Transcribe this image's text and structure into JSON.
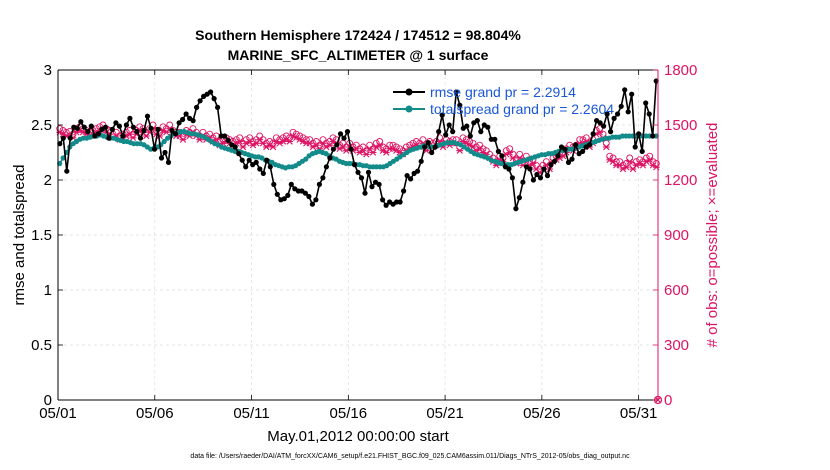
{
  "chart_data": {
    "type": "line",
    "title": "Southern Hemisphere 172424 / 174512 = 98.804%",
    "subtitle": "MARINE_SFC_ALTIMETER @ 1 surface",
    "xlabel": "May.01,2012 00:00:00 start",
    "ylabel_left": "rmse and totalspread",
    "ylabel_right": "# of obs: o=possible; ×=evaluated",
    "x_ticks": [
      "05/01",
      "05/06",
      "05/11",
      "05/16",
      "05/21",
      "05/26",
      "05/31"
    ],
    "xlim_days": [
      1,
      32
    ],
    "ylim_left": [
      0,
      3
    ],
    "y_ticks_left": [
      "0",
      "0.5",
      "1",
      "1.5",
      "2",
      "2.5",
      "3"
    ],
    "ylim_right": [
      0,
      1800
    ],
    "y_ticks_right": [
      "0",
      "300",
      "600",
      "900",
      "1200",
      "1500",
      "1800"
    ],
    "footnote": "data file: /Users/raeder/DAI/ATM_forcXX/CAM6_setup/f.e21.FHIST_BGC.f09_025.CAM6assim.011/Diags_NTrS_2012-05/obs_diag_output.nc",
    "colors": {
      "rmse": "#000000",
      "spread": "#138b8b",
      "obs": "#dc1464",
      "rightaxis": "#dc1464"
    },
    "series": [
      {
        "name": "rmse grand pr = 2.2914",
        "axis": "left",
        "marker": "dot",
        "values": [
          2.33,
          2.38,
          2.08,
          2.38,
          2.48,
          2.47,
          2.53,
          2.48,
          2.44,
          2.49,
          2.4,
          2.42,
          2.46,
          2.48,
          2.38,
          2.46,
          2.52,
          2.49,
          2.4,
          2.5,
          2.56,
          2.48,
          2.44,
          2.38,
          2.45,
          2.58,
          2.47,
          2.28,
          2.46,
          2.2,
          2.25,
          2.16,
          2.45,
          2.42,
          2.52,
          2.55,
          2.6,
          2.56,
          2.54,
          2.66,
          2.72,
          2.76,
          2.78,
          2.8,
          2.74,
          2.66,
          2.4,
          2.4,
          2.36,
          2.32,
          2.3,
          2.24,
          2.18,
          2.12,
          2.18,
          2.14,
          2.16,
          2.1,
          2.06,
          2.18,
          2.12,
          1.96,
          1.87,
          1.82,
          1.83,
          1.86,
          1.96,
          1.92,
          1.9,
          1.9,
          1.88,
          1.85,
          1.78,
          1.82,
          1.96,
          2.02,
          2.12,
          2.2,
          2.28,
          2.32,
          2.42,
          2.38,
          2.44,
          2.28,
          2.14,
          2.07,
          2.02,
          1.88,
          2.07,
          1.94,
          1.98,
          1.96,
          1.82,
          1.77,
          1.8,
          1.78,
          1.8,
          1.8,
          1.9,
          2.04,
          2.01,
          2.06,
          2.08,
          2.17,
          2.3,
          2.34,
          2.25,
          2.3,
          2.44,
          2.59,
          2.41,
          2.5,
          2.44,
          2.8,
          2.68,
          2.47,
          2.49,
          2.4,
          2.52,
          2.54,
          2.44,
          2.5,
          2.48,
          2.37,
          2.37,
          2.26,
          2.22,
          2.12,
          2.1,
          2.02,
          1.74,
          1.84,
          1.98,
          2.12,
          2.1,
          2.0,
          2.05,
          2.02,
          2.1,
          2.04,
          2.14,
          2.17,
          2.22,
          2.3,
          2.28,
          2.16,
          2.19,
          2.32,
          2.24,
          2.26,
          2.3,
          2.32,
          2.42,
          2.54,
          2.52,
          2.49,
          2.6,
          2.44,
          2.56,
          2.6,
          2.67,
          2.82,
          2.62,
          2.78,
          2.3,
          2.42,
          2.26,
          2.7,
          2.6,
          2.4,
          2.9
        ]
      },
      {
        "name": "totalspread grand pr = 2.2604",
        "axis": "left",
        "marker": "dot",
        "values": [
          2.15,
          2.2,
          2.25,
          2.3,
          2.33,
          2.35,
          2.37,
          2.38,
          2.38,
          2.39,
          2.4,
          2.4,
          2.41,
          2.4,
          2.39,
          2.38,
          2.38,
          2.37,
          2.36,
          2.35,
          2.35,
          2.34,
          2.33,
          2.33,
          2.33,
          2.32,
          2.3,
          2.28,
          2.29,
          2.3,
          2.32,
          2.35,
          2.38,
          2.4,
          2.42,
          2.43,
          2.44,
          2.44,
          2.43,
          2.42,
          2.42,
          2.41,
          2.4,
          2.39,
          2.37,
          2.35,
          2.33,
          2.32,
          2.3,
          2.29,
          2.28,
          2.27,
          2.26,
          2.26,
          2.25,
          2.24,
          2.23,
          2.22,
          2.21,
          2.21,
          2.2,
          2.18,
          2.17,
          2.16,
          2.14,
          2.13,
          2.12,
          2.11,
          2.12,
          2.12,
          2.13,
          2.15,
          2.17,
          2.19,
          2.22,
          2.24,
          2.25,
          2.26,
          2.25,
          2.24,
          2.22,
          2.2,
          2.19,
          2.17,
          2.16,
          2.15,
          2.15,
          2.15,
          2.14,
          2.14,
          2.13,
          2.13,
          2.12,
          2.12,
          2.12,
          2.12,
          2.12,
          2.13,
          2.15,
          2.17,
          2.19,
          2.21,
          2.23,
          2.25,
          2.27,
          2.28,
          2.29,
          2.3,
          2.31,
          2.31,
          2.3,
          2.3,
          2.31,
          2.32,
          2.33,
          2.34,
          2.34,
          2.34,
          2.33,
          2.32,
          2.3,
          2.28,
          2.26,
          2.24,
          2.23,
          2.22,
          2.21,
          2.2,
          2.18,
          2.17,
          2.16,
          2.15,
          2.14,
          2.14,
          2.14,
          2.15,
          2.16,
          2.17,
          2.18,
          2.19,
          2.2,
          2.21,
          2.22,
          2.23,
          2.23,
          2.24,
          2.24,
          2.25,
          2.26,
          2.27,
          2.27,
          2.28,
          2.28,
          2.29,
          2.3,
          2.31,
          2.32,
          2.33,
          2.34,
          2.35,
          2.36,
          2.37,
          2.38,
          2.38,
          2.39,
          2.39,
          2.39,
          2.4,
          2.4,
          2.4,
          2.4,
          2.4,
          2.4,
          2.4,
          2.4,
          2.4,
          2.4,
          2.4
        ]
      },
      {
        "name": "obs possible",
        "axis": "right",
        "marker": "circle",
        "values": [
          1480,
          1470,
          1460,
          1465,
          1450,
          1480,
          1490,
          1480,
          1470,
          1460,
          1470,
          1480,
          1490,
          1500,
          1480,
          1470,
          1450,
          1460,
          1440,
          1450,
          1460,
          1470,
          1450,
          1470,
          1490,
          1480,
          1460,
          1480,
          1500,
          1470,
          1460,
          1490,
          1480,
          1500,
          1470,
          1460,
          1460,
          1440,
          1470,
          1460,
          1480,
          1460,
          1440,
          1460,
          1440,
          1450,
          1430,
          1440,
          1410,
          1420,
          1430,
          1420,
          1410,
          1420,
          1430,
          1400,
          1420,
          1430,
          1410,
          1420,
          1440,
          1420,
          1400,
          1410,
          1400,
          1430,
          1420,
          1430,
          1440,
          1430,
          1460,
          1450,
          1440,
          1430,
          1420,
          1420,
          1400,
          1410,
          1390,
          1420,
          1400,
          1410,
          1430,
          1420,
          1390,
          1400,
          1380,
          1400,
          1380,
          1390,
          1370,
          1380,
          1360,
          1390,
          1370,
          1400,
          1410,
          1380,
          1370,
          1390,
          1390,
          1380,
          1370,
          1360,
          1380,
          1390,
          1400,
          1410,
          1400,
          1420,
          1380,
          1410,
          1400,
          1410,
          1430,
          1400,
          1420,
          1410,
          1420,
          1420,
          1380,
          1430,
          1420,
          1410,
          1400,
          1380,
          1390,
          1370,
          1360,
          1340,
          1320,
          1300,
          1330,
          1320,
          1360,
          1370,
          1340,
          1310,
          1340,
          1300,
          1330,
          1300,
          1310,
          1280,
          1260,
          1280,
          1300,
          1280,
          1320,
          1330,
          1340,
          1350,
          1370,
          1390,
          1380,
          1390,
          1420,
          1420,
          1430,
          1400,
          1420,
          1470,
          1480,
          1450,
          1400,
          1330,
          1320,
          1300,
          1300,
          1280,
          1290,
          1320,
          1280,
          1300,
          1310,
          1300,
          1320,
          1330,
          1300,
          1290
        ]
      },
      {
        "name": "obs evaluated",
        "axis": "right",
        "marker": "x",
        "values": [
          1460,
          1450,
          1440,
          1445,
          1430,
          1460,
          1470,
          1460,
          1450,
          1440,
          1450,
          1460,
          1470,
          1480,
          1460,
          1450,
          1430,
          1440,
          1420,
          1430,
          1440,
          1450,
          1430,
          1450,
          1470,
          1460,
          1440,
          1460,
          1480,
          1450,
          1440,
          1470,
          1460,
          1480,
          1450,
          1440,
          1440,
          1420,
          1450,
          1440,
          1460,
          1440,
          1420,
          1440,
          1420,
          1430,
          1410,
          1420,
          1390,
          1400,
          1410,
          1400,
          1390,
          1400,
          1410,
          1380,
          1400,
          1410,
          1390,
          1400,
          1420,
          1400,
          1380,
          1390,
          1380,
          1410,
          1400,
          1410,
          1420,
          1410,
          1440,
          1430,
          1420,
          1410,
          1400,
          1400,
          1380,
          1390,
          1370,
          1400,
          1380,
          1390,
          1410,
          1400,
          1370,
          1380,
          1360,
          1380,
          1360,
          1370,
          1350,
          1360,
          1340,
          1370,
          1350,
          1380,
          1390,
          1360,
          1350,
          1370,
          1370,
          1360,
          1350,
          1340,
          1360,
          1370,
          1380,
          1390,
          1380,
          1400,
          1360,
          1390,
          1380,
          1390,
          1410,
          1380,
          1400,
          1390,
          1400,
          1400,
          1360,
          1410,
          1400,
          1390,
          1380,
          1360,
          1370,
          1350,
          1340,
          1320,
          1300,
          1280,
          1310,
          1300,
          1340,
          1350,
          1320,
          1290,
          1320,
          1280,
          1310,
          1280,
          1290,
          1260,
          1240,
          1260,
          1280,
          1260,
          1300,
          1310,
          1320,
          1330,
          1350,
          1370,
          1360,
          1370,
          1400,
          1400,
          1410,
          1380,
          1400,
          1450,
          1460,
          1430,
          1380,
          1310,
          1300,
          1280,
          1280,
          1260,
          1270,
          1300,
          1260,
          1280,
          1290,
          1280,
          1300,
          1310,
          1280,
          1270
        ]
      }
    ],
    "legend_position": "top-right"
  }
}
